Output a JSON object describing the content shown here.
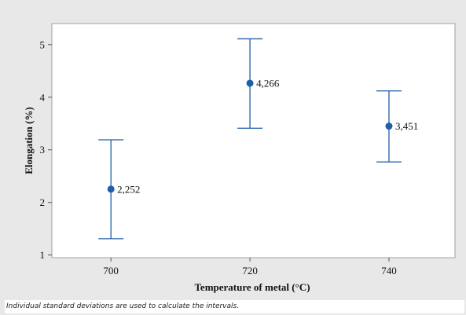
{
  "chart_data": {
    "type": "interval",
    "categories": [
      "700",
      "720",
      "740"
    ],
    "x": [
      700,
      720,
      740
    ],
    "means": [
      2.252,
      4.266,
      3.451
    ],
    "lower": [
      1.31,
      3.41,
      2.77
    ],
    "upper": [
      3.19,
      5.11,
      4.12
    ],
    "labels": [
      "2,252",
      "4,266",
      "3,451"
    ],
    "xlabel": "Temperature of metal (°C)",
    "ylabel": "Elongation (%)",
    "xlim": [
      691.5,
      749.5
    ],
    "ylim": [
      0.95,
      5.4
    ],
    "yticks": [
      1,
      2,
      3,
      4,
      5
    ],
    "grid": false,
    "color": "#1f5fa8",
    "footnote": "Individual standard deviations are used to calculate the intervals."
  }
}
